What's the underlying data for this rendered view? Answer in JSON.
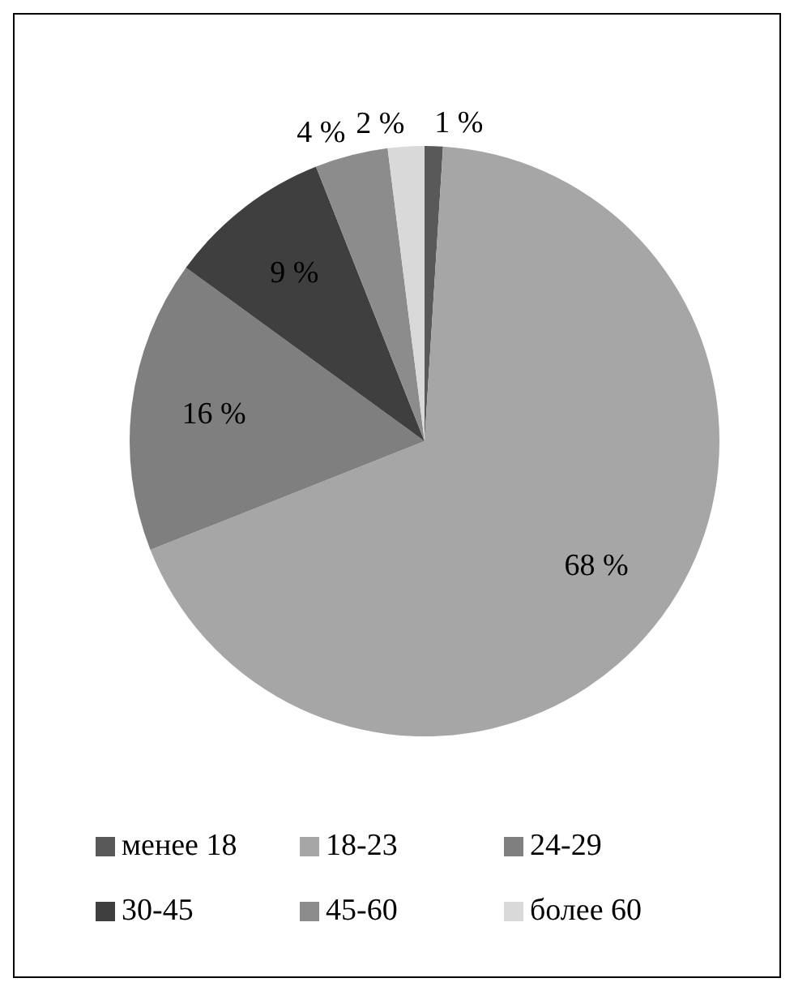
{
  "chart_data": {
    "type": "pie",
    "categories": [
      "менее 18",
      "18-23",
      "24-29",
      "30-45",
      "45-60",
      "более 60"
    ],
    "values": [
      1,
      68,
      16,
      9,
      4,
      2
    ],
    "colors": [
      "#595959",
      "#a6a6a6",
      "#7f7f7f",
      "#3f3f3f",
      "#8c8c8c",
      "#d9d9d9"
    ],
    "value_labels": [
      "1 %",
      "68 %",
      "16 %",
      "9 %",
      "4 %",
      "2 %"
    ],
    "legend": "bottom"
  }
}
